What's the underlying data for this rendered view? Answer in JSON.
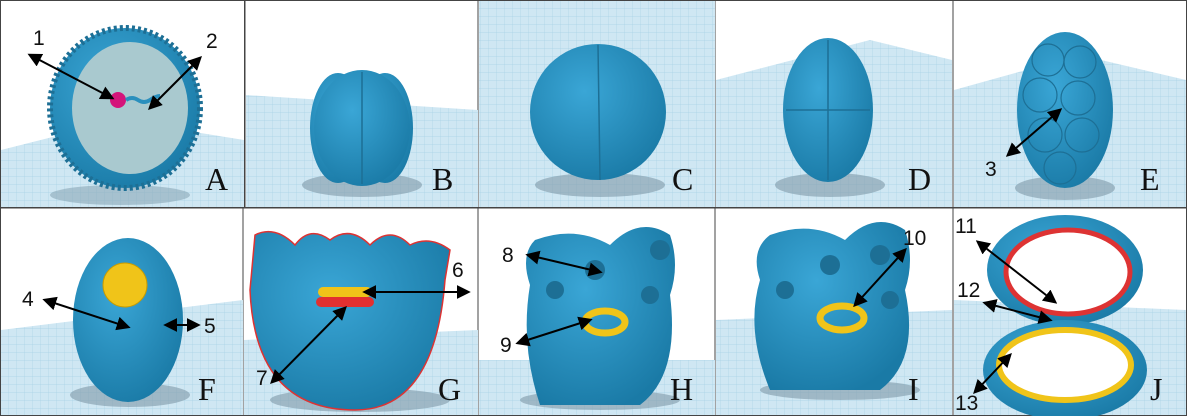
{
  "panels": [
    {
      "label": "A",
      "callouts": [
        "1",
        "2"
      ]
    },
    {
      "label": "B"
    },
    {
      "label": "C"
    },
    {
      "label": "D"
    },
    {
      "label": "E",
      "callouts": [
        "3"
      ]
    },
    {
      "label": "F",
      "callouts": [
        "4",
        "5"
      ]
    },
    {
      "label": "G",
      "callouts": [
        "6",
        "7"
      ]
    },
    {
      "label": "H",
      "callouts": [
        "8",
        "9"
      ]
    },
    {
      "label": "I",
      "callouts": [
        "10"
      ]
    },
    {
      "label": "J",
      "callouts": [
        "11",
        "12",
        "13"
      ]
    }
  ]
}
